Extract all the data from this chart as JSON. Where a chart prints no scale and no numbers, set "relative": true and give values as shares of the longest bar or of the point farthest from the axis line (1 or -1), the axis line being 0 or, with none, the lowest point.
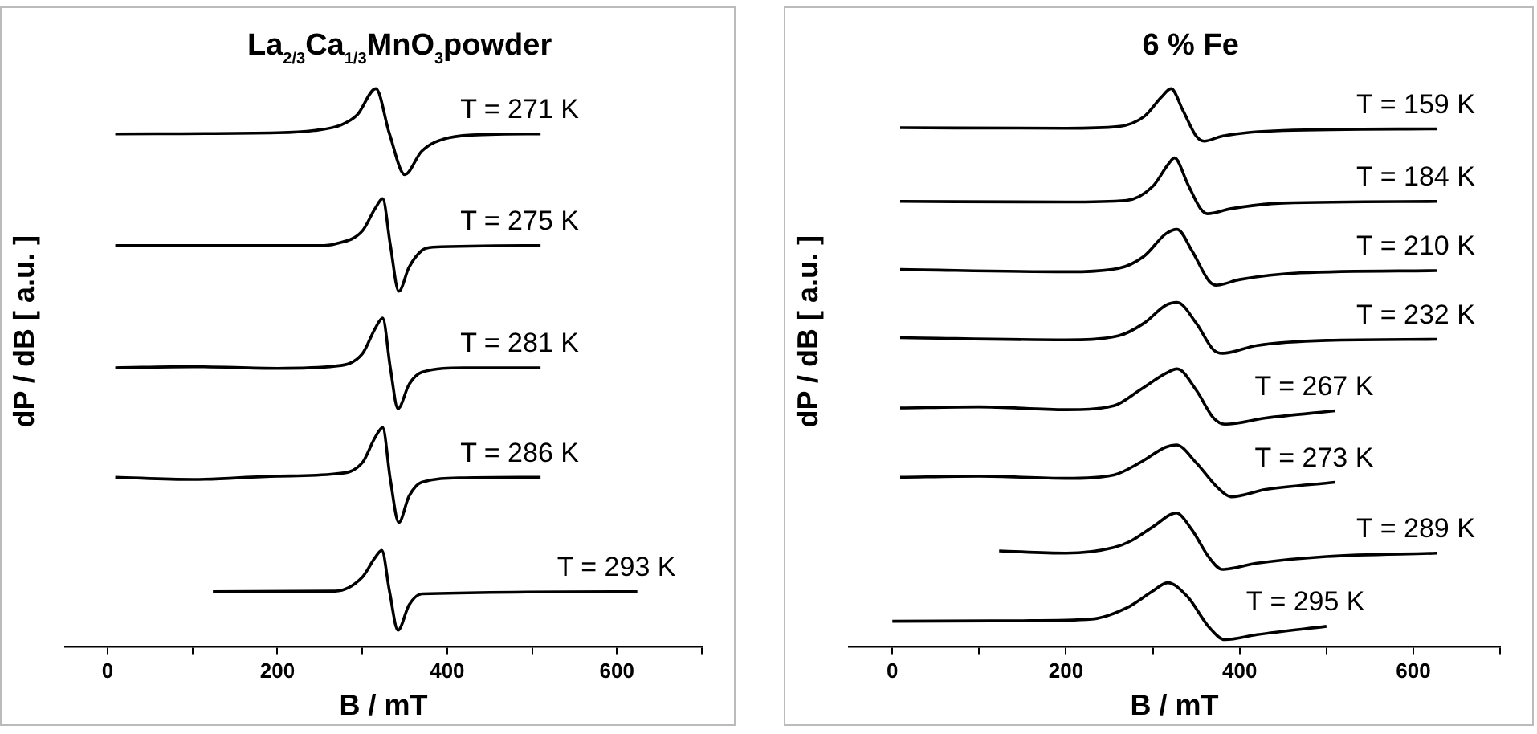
{
  "chart_data": [
    {
      "type": "line",
      "relative": true,
      "title": "La$_{2/3}$Ca$_{1/3}$MnO$_{3}$powder",
      "xlabel": "B / mT",
      "ylabel": "dP / dB [ a.u. ]",
      "xlim": [
        -50,
        700
      ],
      "xticks": [
        0,
        {
          "value": 100,
          "label": null
        },
        200,
        {
          "value": 300,
          "label": null
        },
        400,
        {
          "value": 500,
          "label": null
        },
        600,
        {
          "value": 700,
          "label": null
        }
      ],
      "series": [
        {
          "name": "T = 271 K",
          "color": "#000000",
          "x": [
            9,
            200,
            243,
            275,
            294,
            316,
            332,
            350,
            370,
            402,
            450,
            510
          ],
          "values": [
            0.919,
            0.921,
            0.925,
            0.935,
            0.953,
            1.0,
            0.919,
            0.846,
            0.888,
            0.912,
            0.918,
            0.919
          ]
        },
        {
          "name": "T = 275 K",
          "color": "#000000",
          "x": [
            9,
            250,
            268,
            300,
            315,
            324,
            333,
            343,
            355,
            370,
            383,
            510
          ],
          "values": [
            0.719,
            0.719,
            0.722,
            0.745,
            0.785,
            0.803,
            0.72,
            0.637,
            0.68,
            0.71,
            0.716,
            0.719
          ]
        },
        {
          "name": "T = 281 K",
          "color": "#000000",
          "x": [
            9,
            100,
            200,
            268,
            300,
            315,
            324,
            333,
            342,
            355,
            370,
            420,
            510
          ],
          "values": [
            0.5,
            0.502,
            0.499,
            0.503,
            0.525,
            0.57,
            0.589,
            0.5,
            0.427,
            0.47,
            0.492,
            0.5,
            0.5
          ]
        },
        {
          "name": "T = 286 K",
          "color": "#000000",
          "x": [
            9,
            100,
            200,
            268,
            300,
            315,
            324,
            333,
            343,
            355,
            370,
            420,
            510
          ],
          "values": [
            0.304,
            0.3,
            0.306,
            0.31,
            0.33,
            0.375,
            0.393,
            0.3,
            0.223,
            0.27,
            0.295,
            0.303,
            0.304
          ]
        },
        {
          "name": "T = 293 K",
          "color": "#000000",
          "x": [
            124,
            268,
            300,
            315,
            323,
            332,
            342,
            355,
            370,
            624
          ],
          "values": [
            0.099,
            0.1,
            0.125,
            0.16,
            0.173,
            0.1,
            0.03,
            0.075,
            0.095,
            0.099
          ]
        }
      ]
    },
    {
      "type": "line",
      "relative": true,
      "title": "6 % Fe",
      "xlabel": "B / mT",
      "ylabel": "dP / dB [ a.u. ]",
      "xlim": [
        -50,
        700
      ],
      "xticks": [
        0,
        {
          "value": 100,
          "label": null
        },
        200,
        {
          "value": 300,
          "label": null
        },
        400,
        {
          "value": 500,
          "label": null
        },
        600,
        {
          "value": 700,
          "label": null
        }
      ],
      "series": [
        {
          "name": "T = 159 K",
          "color": "#000000",
          "x": [
            9,
            200,
            260,
            290,
            310,
            321,
            335,
            350,
            359,
            380,
            450,
            627
          ],
          "values": [
            0.93,
            0.929,
            0.932,
            0.95,
            0.985,
            1.0,
            0.96,
            0.915,
            0.906,
            0.915,
            0.925,
            0.928
          ]
        },
        {
          "name": "T = 184 K",
          "color": "#000000",
          "x": [
            9,
            200,
            270,
            300,
            318,
            325,
            340,
            355,
            363,
            390,
            450,
            627
          ],
          "values": [
            0.798,
            0.797,
            0.8,
            0.825,
            0.865,
            0.876,
            0.83,
            0.785,
            0.776,
            0.785,
            0.795,
            0.798
          ]
        },
        {
          "name": "T = 210 K",
          "color": "#000000",
          "x": [
            9,
            200,
            260,
            290,
            315,
            328,
            345,
            365,
            373,
            400,
            470,
            627
          ],
          "values": [
            0.676,
            0.672,
            0.678,
            0.7,
            0.74,
            0.748,
            0.71,
            0.655,
            0.648,
            0.658,
            0.67,
            0.674
          ]
        },
        {
          "name": "T = 232 K",
          "color": "#000000",
          "x": [
            9,
            200,
            260,
            290,
            315,
            328,
            350,
            370,
            380,
            420,
            500,
            627
          ],
          "values": [
            0.554,
            0.55,
            0.557,
            0.58,
            0.612,
            0.617,
            0.58,
            0.532,
            0.526,
            0.54,
            0.549,
            0.551
          ]
        },
        {
          "name": "T = 267 K",
          "color": "#000000",
          "x": [
            9,
            100,
            200,
            255,
            285,
            315,
            328,
            350,
            370,
            383,
            430,
            510
          ],
          "values": [
            0.428,
            0.43,
            0.425,
            0.432,
            0.46,
            0.49,
            0.498,
            0.46,
            0.41,
            0.399,
            0.41,
            0.423
          ]
        },
        {
          "name": "T = 273 K",
          "color": "#000000",
          "x": [
            9,
            100,
            200,
            255,
            285,
            315,
            327,
            350,
            375,
            390,
            430,
            510
          ],
          "values": [
            0.304,
            0.306,
            0.302,
            0.308,
            0.33,
            0.358,
            0.362,
            0.33,
            0.285,
            0.269,
            0.282,
            0.295
          ]
        },
        {
          "name": "T = 289 K",
          "color": "#000000",
          "x": [
            123,
            200,
            255,
            275,
            300,
            327,
            345,
            365,
            380,
            420,
            500,
            627
          ],
          "values": [
            0.172,
            0.168,
            0.178,
            0.19,
            0.215,
            0.24,
            0.21,
            0.16,
            0.139,
            0.15,
            0.162,
            0.168
          ]
        },
        {
          "name": "T = 295 K",
          "color": "#000000",
          "x": [
            0,
            150,
            230,
            270,
            300,
            317,
            340,
            365,
            383,
            420,
            500
          ],
          "values": [
            0.046,
            0.047,
            0.05,
            0.07,
            0.1,
            0.115,
            0.09,
            0.035,
            0.013,
            0.022,
            0.037
          ]
        }
      ]
    }
  ]
}
